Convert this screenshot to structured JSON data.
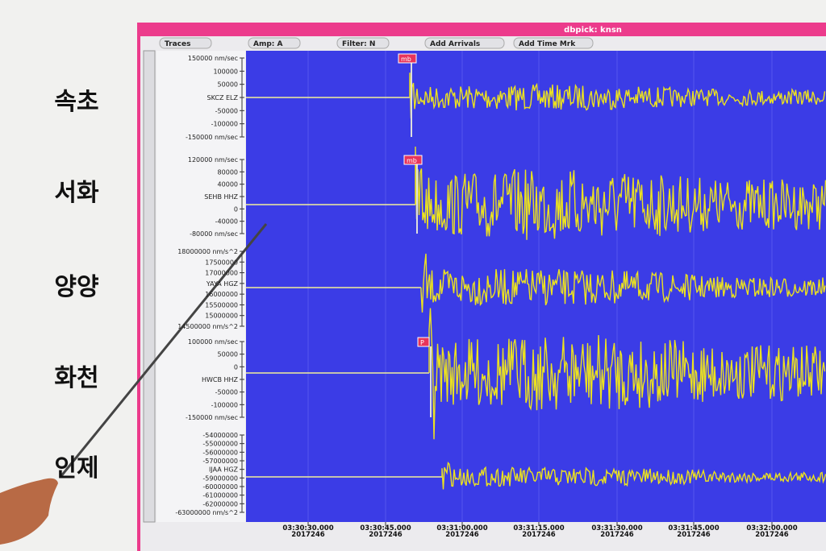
{
  "window_title": "dbpick: knsn",
  "menu": [
    "Traces",
    "Amp: A",
    "Filter: N",
    "Add Arrivals",
    "Add Time Mrk"
  ],
  "side_labels": [
    "속초",
    "서화",
    "양양",
    "화천",
    "인제"
  ],
  "traces": [
    {
      "station": "SKCZ ELZ",
      "axis_labels": [
        "150000 nm/sec",
        "100000",
        "50000",
        "SKCZ ELZ",
        "-50000",
        "-100000",
        "-150000 nm/sec"
      ],
      "pick": "mb"
    },
    {
      "station": "SEHB HHZ",
      "axis_labels": [
        "120000 nm/sec",
        "80000",
        "40000",
        "SEHB HHZ",
        "0",
        "-40000",
        "-80000 nm/sec"
      ],
      "pick": "mb"
    },
    {
      "station": "YAYA HGZ",
      "axis_labels": [
        "18000000 nm/s^2",
        "17500000",
        "17000000",
        "YAYA HGZ",
        "16000000",
        "15500000",
        "15000000",
        "14500000 nm/s^2"
      ]
    },
    {
      "station": "HWCB HHZ",
      "axis_labels": [
        "100000 nm/sec",
        "50000",
        "0",
        "HWCB HHZ",
        "-50000",
        "-100000",
        "-150000 nm/sec"
      ],
      "pick": "P"
    },
    {
      "station": "IJAA HGZ",
      "axis_labels": [
        "-54000000",
        "-55000000",
        "-56000000",
        "-57000000",
        "IJAA HGZ",
        "-59000000",
        "-60000000",
        "-61000000",
        "-62000000",
        "-63000000 nm/s^2"
      ]
    }
  ],
  "time_labels": [
    {
      "time": "03:30:30.000",
      "date": "2017246"
    },
    {
      "time": "03:30:45.000",
      "date": "2017246"
    },
    {
      "time": "03:31:00.000",
      "date": "2017246"
    },
    {
      "time": "03:31:15.000",
      "date": "2017246"
    },
    {
      "time": "03:31:30.000",
      "date": "2017246"
    },
    {
      "time": "03:31:45.000",
      "date": "2017246"
    },
    {
      "time": "03:32:00.000",
      "date": "2017246"
    }
  ]
}
